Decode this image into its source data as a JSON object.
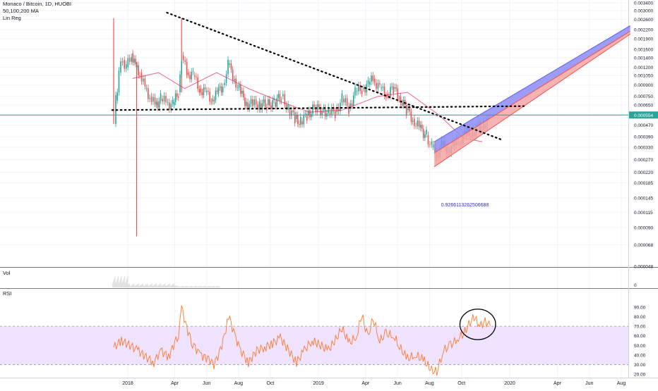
{
  "legend": {
    "symbol": "Monaco / Bitcoin, 1D, HUOBI",
    "ma": "50,100,200 MA",
    "linreg": "Lin Reg"
  },
  "panes": {
    "volume_label": "Vol",
    "rsi_label": "RSI"
  },
  "colors": {
    "candle_up": "#26a69a",
    "candle_down": "#ef5350",
    "ma": "#e91e63",
    "channel_upper": "#5b5bf5",
    "channel_lower": "#ef5350",
    "channel_fill_upper": "#8c8cf7",
    "channel_fill_lower": "#f6a5a5",
    "price_line": "#26a69a",
    "rsi_line": "#ff7a2a",
    "rsi_band": "#efe3ff",
    "trendline": "#000000",
    "current_price_bg": "#26a69a"
  },
  "chart_data": [
    {
      "type": "line",
      "title": "Monaco / Bitcoin, 1D, HUOBI",
      "y_scale": "log",
      "y_ticks": [
        "0.003400",
        "0.003000",
        "0.002600",
        "0.002200",
        "0.001900",
        "0.001600",
        "0.001400",
        "0.001200",
        "0.001050",
        "0.000900",
        "0.000750",
        "0.000650",
        "0.000550",
        "0.000470",
        "0.000390",
        "0.000330",
        "0.000270",
        "0.000220",
        "0.000185",
        "0.000145",
        "0.000115",
        "0.000090",
        "0.000068",
        "0.000048"
      ],
      "x_ticks": [
        "2018",
        "Apr",
        "Jun",
        "Aug",
        "Oct",
        "2019",
        "Apr",
        "Jun",
        "Aug",
        "Oct",
        "2020",
        "Apr",
        "Jun",
        "Aug"
      ],
      "current_price": "0.000554",
      "regression_label": "0.9266113262506688",
      "price_series": [
        [
          "2017-12-05",
          0.00048
        ],
        [
          "2017-12-09",
          0.0007
        ],
        [
          "2017-12-15",
          0.0011
        ],
        [
          "2017-12-22",
          0.00135
        ],
        [
          "2017-12-29",
          0.0012
        ],
        [
          "2018-01-08",
          0.0015
        ],
        [
          "2018-01-16",
          0.0012
        ],
        [
          "2018-01-24",
          0.0011
        ],
        [
          "2018-02-03",
          0.00085
        ],
        [
          "2018-02-12",
          0.00075
        ],
        [
          "2018-02-22",
          0.00065
        ],
        [
          "2018-03-05",
          0.00072
        ],
        [
          "2018-03-15",
          0.00068
        ],
        [
          "2018-03-28",
          0.00065
        ],
        [
          "2018-04-08",
          0.0008
        ],
        [
          "2018-04-14",
          0.00145
        ],
        [
          "2018-04-24",
          0.0011
        ],
        [
          "2018-05-06",
          0.00105
        ],
        [
          "2018-05-18",
          0.00085
        ],
        [
          "2018-05-29",
          0.0008
        ],
        [
          "2018-06-10",
          0.00072
        ],
        [
          "2018-06-21",
          0.00078
        ],
        [
          "2018-07-02",
          0.0009
        ],
        [
          "2018-07-12",
          0.00125
        ],
        [
          "2018-07-24",
          0.001
        ],
        [
          "2018-08-05",
          0.00078
        ],
        [
          "2018-08-16",
          0.00068
        ],
        [
          "2018-08-28",
          0.00065
        ],
        [
          "2018-09-10",
          0.00067
        ],
        [
          "2018-09-24",
          0.00065
        ],
        [
          "2018-10-08",
          0.00068
        ],
        [
          "2018-10-22",
          0.00075
        ],
        [
          "2018-11-04",
          0.00062
        ],
        [
          "2018-11-17",
          0.00052
        ],
        [
          "2018-11-28",
          0.0005
        ],
        [
          "2018-12-10",
          0.00055
        ],
        [
          "2018-12-24",
          0.00062
        ],
        [
          "2019-01-08",
          0.0006
        ],
        [
          "2019-01-20",
          0.00058
        ],
        [
          "2019-02-02",
          0.00058
        ],
        [
          "2019-02-15",
          0.00072
        ],
        [
          "2019-02-28",
          0.00062
        ],
        [
          "2019-03-12",
          0.0008
        ],
        [
          "2019-03-25",
          0.00085
        ],
        [
          "2019-04-06",
          0.0009
        ],
        [
          "2019-04-15",
          0.001
        ],
        [
          "2019-04-28",
          0.00085
        ],
        [
          "2019-05-10",
          0.00078
        ],
        [
          "2019-05-24",
          0.00085
        ],
        [
          "2019-06-04",
          0.00075
        ],
        [
          "2019-06-18",
          0.0006
        ],
        [
          "2019-06-30",
          0.00052
        ],
        [
          "2019-07-12",
          0.00045
        ],
        [
          "2019-07-26",
          0.0004
        ],
        [
          "2019-08-05",
          0.00033
        ],
        [
          "2019-08-14",
          0.00029
        ],
        [
          "2019-08-24",
          0.00034
        ],
        [
          "2019-09-05",
          0.00032
        ],
        [
          "2019-09-18",
          0.00034
        ],
        [
          "2019-09-28",
          0.00037
        ],
        [
          "2019-10-10",
          0.00041
        ],
        [
          "2019-10-22",
          0.00042
        ],
        [
          "2019-11-01",
          0.00044
        ],
        [
          "2019-11-12",
          0.00047
        ],
        [
          "2019-11-22",
          0.0005
        ]
      ],
      "spikes": [
        {
          "date": "2017-12-05",
          "high": 0.00265,
          "low": 0.00048
        },
        {
          "date": "2018-01-18",
          "high": 0.0013,
          "low": 7.8e-05
        },
        {
          "date": "2018-04-14",
          "high": 0.00265,
          "low": 0.0008
        }
      ],
      "trendline_descending": [
        [
          "2018-03-17",
          0.0029
        ],
        [
          "2019-12-18",
          0.00037
        ]
      ],
      "trendline_horizontal": [
        [
          "2017-12-02",
          0.0006
        ],
        [
          "2020-01-28",
          0.00064
        ]
      ],
      "regression_channel": {
        "start_date": "2019-08-10",
        "end_date": "2020-08-18",
        "upper_start": 0.00036,
        "upper_end": 0.00235,
        "mid_start": 0.0003,
        "mid_end": 0.00215,
        "lower_start": 0.00024,
        "lower_end": 0.00205
      },
      "moving_average": [
        [
          "2018-01-10",
          0.001
        ],
        [
          "2018-03-01",
          0.0011
        ],
        [
          "2018-04-20",
          0.00085
        ],
        [
          "2018-06-20",
          0.0011
        ],
        [
          "2018-08-20",
          0.00085
        ],
        [
          "2018-10-15",
          0.0007
        ],
        [
          "2018-12-15",
          0.00058
        ],
        [
          "2019-02-15",
          0.0006
        ],
        [
          "2019-04-25",
          0.00075
        ],
        [
          "2019-06-20",
          0.0008
        ],
        [
          "2019-08-20",
          0.00055
        ],
        [
          "2019-10-05",
          0.00038
        ],
        [
          "2019-11-10",
          0.00036
        ]
      ]
    },
    {
      "type": "bar",
      "title": "Vol",
      "y_ticks": [
        "0"
      ]
    },
    {
      "type": "line",
      "title": "RSI",
      "ylim": [
        15,
        95
      ],
      "y_ticks": [
        "90.00",
        "80.00",
        "70.00",
        "60.00",
        "50.00",
        "40.00",
        "30.00",
        "20.00"
      ],
      "band": [
        30,
        70
      ],
      "series": [
        [
          "2017-12-05",
          48
        ],
        [
          "2017-12-20",
          55
        ],
        [
          "2018-01-05",
          50
        ],
        [
          "2018-01-20",
          45
        ],
        [
          "2018-02-05",
          38
        ],
        [
          "2018-02-20",
          32
        ],
        [
          "2018-03-05",
          45
        ],
        [
          "2018-03-20",
          38
        ],
        [
          "2018-04-08",
          62
        ],
        [
          "2018-04-14",
          90
        ],
        [
          "2018-04-24",
          68
        ],
        [
          "2018-05-05",
          52
        ],
        [
          "2018-05-20",
          40
        ],
        [
          "2018-06-05",
          36
        ],
        [
          "2018-06-15",
          30
        ],
        [
          "2018-06-25",
          42
        ],
        [
          "2018-07-05",
          60
        ],
        [
          "2018-07-13",
          82
        ],
        [
          "2018-07-25",
          60
        ],
        [
          "2018-08-05",
          45
        ],
        [
          "2018-08-20",
          32
        ],
        [
          "2018-09-05",
          45
        ],
        [
          "2018-09-20",
          48
        ],
        [
          "2018-10-05",
          52
        ],
        [
          "2018-10-20",
          58
        ],
        [
          "2018-11-05",
          45
        ],
        [
          "2018-11-20",
          32
        ],
        [
          "2018-12-05",
          45
        ],
        [
          "2018-12-20",
          55
        ],
        [
          "2019-01-05",
          50
        ],
        [
          "2019-01-20",
          45
        ],
        [
          "2019-02-05",
          58
        ],
        [
          "2019-02-15",
          68
        ],
        [
          "2019-03-01",
          52
        ],
        [
          "2019-03-15",
          60
        ],
        [
          "2019-03-25",
          82
        ],
        [
          "2019-04-05",
          58
        ],
        [
          "2019-04-15",
          78
        ],
        [
          "2019-04-28",
          55
        ],
        [
          "2019-05-10",
          62
        ],
        [
          "2019-05-25",
          60
        ],
        [
          "2019-06-05",
          48
        ],
        [
          "2019-06-20",
          36
        ],
        [
          "2019-07-05",
          40
        ],
        [
          "2019-07-20",
          35
        ],
        [
          "2019-08-05",
          24
        ],
        [
          "2019-08-15",
          22
        ],
        [
          "2019-08-28",
          45
        ],
        [
          "2019-09-10",
          50
        ],
        [
          "2019-09-25",
          58
        ],
        [
          "2019-10-05",
          62
        ],
        [
          "2019-10-15",
          72
        ],
        [
          "2019-10-25",
          80
        ],
        [
          "2019-11-05",
          70
        ],
        [
          "2019-11-15",
          75
        ],
        [
          "2019-11-25",
          70
        ]
      ],
      "highlight": {
        "shape": "ellipse",
        "date_range": [
          "2019-09-28",
          "2019-12-05"
        ],
        "value_range": [
          56,
          88
        ]
      }
    }
  ]
}
